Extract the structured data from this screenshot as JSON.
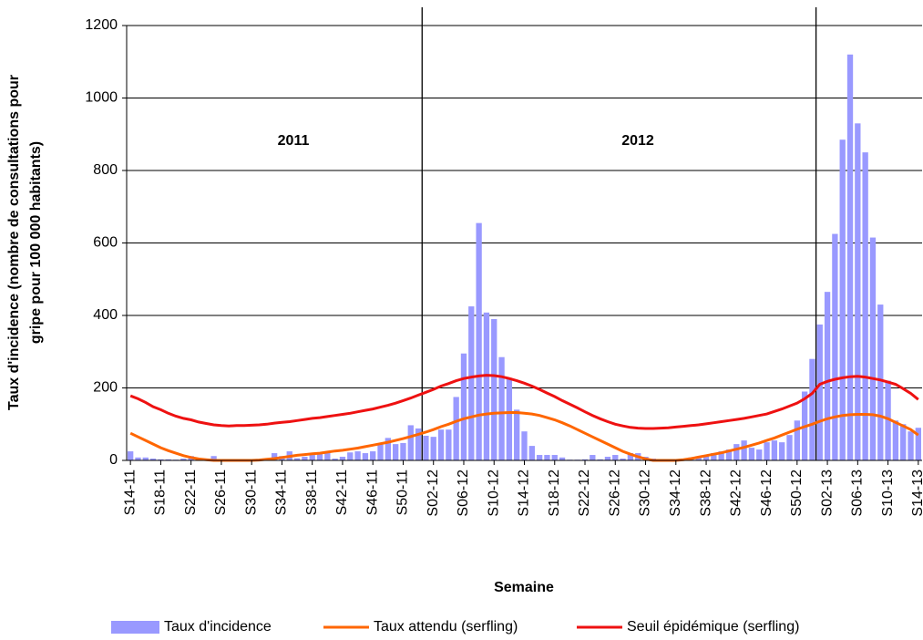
{
  "chart_data": {
    "type": "bar",
    "y_label": [
      "Taux d'incidence (nombre de consultations pour",
      "gripe pour 100 000 habitants)"
    ],
    "x_label": "Semaine",
    "annotations": [
      "2011",
      "2012"
    ],
    "ylim": [
      0,
      1200
    ],
    "yticks": [
      0,
      200,
      400,
      600,
      800,
      1000,
      1200
    ],
    "grid": true,
    "categories": [
      "S14-11",
      null,
      null,
      null,
      "S18-11",
      null,
      null,
      null,
      "S22-11",
      null,
      null,
      null,
      "S26-11",
      null,
      null,
      null,
      "S30-11",
      null,
      null,
      null,
      "S34-11",
      null,
      null,
      null,
      "S38-11",
      null,
      null,
      null,
      "S42-11",
      null,
      null,
      null,
      "S46-11",
      null,
      null,
      null,
      "S50-11",
      null,
      null,
      null,
      "S02-12",
      null,
      null,
      null,
      "S06-12",
      null,
      null,
      null,
      "S10-12",
      null,
      null,
      null,
      "S14-12",
      null,
      null,
      null,
      "S18-12",
      null,
      null,
      null,
      "S22-12",
      null,
      null,
      null,
      "S26-12",
      null,
      null,
      null,
      "S30-12",
      null,
      null,
      null,
      "S34-12",
      null,
      null,
      null,
      "S38-12",
      null,
      null,
      null,
      "S42-12",
      null,
      null,
      null,
      "S46-12",
      null,
      null,
      null,
      "S50-12",
      null,
      null,
      null,
      "S02-13",
      null,
      null,
      null,
      "S06-13",
      null,
      null,
      null,
      "S10-13",
      null,
      null,
      null,
      "S14-13"
    ],
    "series": [
      {
        "name": "Taux d'incidence",
        "type": "bar",
        "color": "#9999ff",
        "values": [
          25,
          8,
          8,
          5,
          3,
          3,
          2,
          5,
          12,
          4,
          3,
          12,
          3,
          3,
          2,
          3,
          2,
          4,
          5,
          20,
          12,
          25,
          6,
          10,
          15,
          20,
          25,
          5,
          10,
          22,
          25,
          20,
          25,
          45,
          62,
          45,
          48,
          97,
          88,
          68,
          65,
          85,
          85,
          175,
          295,
          425,
          655,
          408,
          390,
          285,
          228,
          140,
          80,
          40,
          15,
          15,
          15,
          8,
          2,
          2,
          3,
          15,
          3,
          10,
          15,
          5,
          20,
          20,
          10,
          5,
          3,
          3,
          3,
          3,
          8,
          10,
          15,
          20,
          25,
          30,
          45,
          55,
          35,
          30,
          50,
          55,
          50,
          70,
          110,
          190,
          280,
          375,
          465,
          625,
          885,
          1120,
          930,
          850,
          615,
          430,
          220,
          110,
          100,
          80,
          90
        ]
      },
      {
        "name": "Taux attendu (serfling)",
        "type": "line",
        "color": "#ff6600",
        "values": [
          75,
          65,
          55,
          45,
          35,
          27,
          20,
          13,
          8,
          4,
          2,
          0,
          0,
          0,
          0,
          0,
          0,
          1,
          3,
          5,
          8,
          11,
          14,
          16,
          18,
          20,
          23,
          26,
          28,
          31,
          34,
          38,
          42,
          46,
          50,
          55,
          60,
          66,
          72,
          78,
          85,
          93,
          100,
          108,
          115,
          120,
          125,
          128,
          130,
          131,
          132,
          132,
          130,
          128,
          124,
          118,
          112,
          104,
          95,
          85,
          75,
          65,
          55,
          45,
          35,
          25,
          17,
          10,
          4,
          0,
          0,
          0,
          0,
          2,
          5,
          9,
          13,
          17,
          21,
          26,
          31,
          36,
          42,
          48,
          55,
          62,
          70,
          78,
          86,
          93,
          100,
          108,
          115,
          120,
          124,
          126,
          127,
          127,
          126,
          122,
          115,
          105,
          95,
          85,
          70
        ]
      },
      {
        "name": "Seuil épidémique (serfling)",
        "type": "line",
        "color": "#ee1111",
        "values": [
          178,
          170,
          160,
          148,
          140,
          130,
          122,
          116,
          112,
          106,
          102,
          98,
          96,
          95,
          96,
          96,
          97,
          98,
          100,
          103,
          105,
          107,
          110,
          113,
          116,
          118,
          121,
          124,
          127,
          130,
          134,
          138,
          142,
          147,
          152,
          158,
          165,
          172,
          180,
          188,
          196,
          205,
          212,
          220,
          226,
          230,
          233,
          235,
          234,
          231,
          226,
          220,
          213,
          205,
          196,
          186,
          176,
          165,
          155,
          145,
          134,
          124,
          115,
          107,
          100,
          95,
          91,
          89,
          88,
          88,
          89,
          90,
          92,
          94,
          96,
          98,
          101,
          104,
          107,
          110,
          113,
          116,
          120,
          124,
          128,
          135,
          142,
          150,
          158,
          170,
          185,
          210,
          218,
          224,
          228,
          231,
          232,
          230,
          226,
          222,
          216,
          210,
          198,
          185,
          168
        ]
      }
    ]
  }
}
